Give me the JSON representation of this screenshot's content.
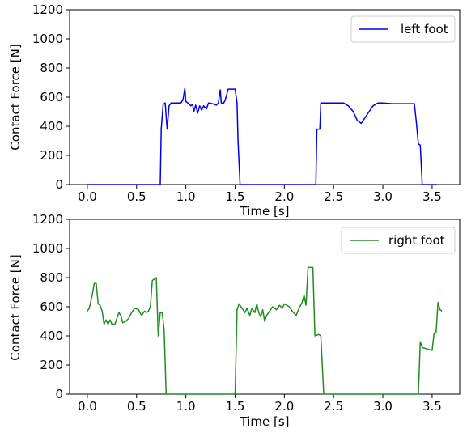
{
  "chart_data": [
    {
      "type": "line",
      "xlabel": "Time [s]",
      "ylabel": "Contact Force [N]",
      "xlim": [
        -0.18,
        3.78
      ],
      "ylim": [
        0,
        1200
      ],
      "xticks": [
        0.0,
        0.5,
        1.0,
        1.5,
        2.0,
        2.5,
        3.0,
        3.5
      ],
      "xtick_labels": [
        "0.0",
        "0.5",
        "1.0",
        "1.5",
        "2.0",
        "2.5",
        "3.0",
        "3.5"
      ],
      "yticks": [
        0,
        200,
        400,
        600,
        800,
        1000,
        1200
      ],
      "ytick_labels": [
        "0",
        "200",
        "400",
        "600",
        "800",
        "1000",
        "1200"
      ],
      "legend_position": "top-right",
      "series": [
        {
          "name": "left foot",
          "color": "#0000ee",
          "points": [
            [
              0.0,
              0
            ],
            [
              0.74,
              0
            ],
            [
              0.75,
              380
            ],
            [
              0.77,
              550
            ],
            [
              0.79,
              560
            ],
            [
              0.8,
              470
            ],
            [
              0.81,
              380
            ],
            [
              0.83,
              540
            ],
            [
              0.85,
              560
            ],
            [
              0.9,
              560
            ],
            [
              0.95,
              560
            ],
            [
              0.97,
              580
            ],
            [
              0.99,
              660
            ],
            [
              1.0,
              570
            ],
            [
              1.03,
              555
            ],
            [
              1.05,
              540
            ],
            [
              1.07,
              550
            ],
            [
              1.08,
              500
            ],
            [
              1.1,
              545
            ],
            [
              1.12,
              490
            ],
            [
              1.14,
              540
            ],
            [
              1.16,
              510
            ],
            [
              1.18,
              540
            ],
            [
              1.21,
              520
            ],
            [
              1.23,
              560
            ],
            [
              1.27,
              555
            ],
            [
              1.31,
              545
            ],
            [
              1.33,
              560
            ],
            [
              1.35,
              650
            ],
            [
              1.36,
              560
            ],
            [
              1.38,
              555
            ],
            [
              1.4,
              580
            ],
            [
              1.43,
              655
            ],
            [
              1.5,
              655
            ],
            [
              1.52,
              560
            ],
            [
              1.53,
              300
            ],
            [
              1.55,
              0
            ],
            [
              2.32,
              0
            ],
            [
              2.33,
              380
            ],
            [
              2.36,
              380
            ],
            [
              2.37,
              560
            ],
            [
              2.4,
              560
            ],
            [
              2.5,
              560
            ],
            [
              2.6,
              560
            ],
            [
              2.65,
              540
            ],
            [
              2.7,
              500
            ],
            [
              2.74,
              440
            ],
            [
              2.78,
              420
            ],
            [
              2.82,
              460
            ],
            [
              2.86,
              500
            ],
            [
              2.9,
              540
            ],
            [
              2.95,
              560
            ],
            [
              3.0,
              560
            ],
            [
              3.1,
              555
            ],
            [
              3.2,
              555
            ],
            [
              3.32,
              555
            ],
            [
              3.34,
              430
            ],
            [
              3.36,
              280
            ],
            [
              3.38,
              270
            ],
            [
              3.4,
              0
            ],
            [
              3.55,
              0
            ]
          ]
        }
      ]
    },
    {
      "type": "line",
      "xlabel": "Time [s]",
      "ylabel": "Contact Force [N]",
      "xlim": [
        -0.18,
        3.78
      ],
      "ylim": [
        0,
        1200
      ],
      "xticks": [
        0.0,
        0.5,
        1.0,
        1.5,
        2.0,
        2.5,
        3.0,
        3.5
      ],
      "xtick_labels": [
        "0.0",
        "0.5",
        "1.0",
        "1.5",
        "2.0",
        "2.5",
        "3.0",
        "3.5"
      ],
      "yticks": [
        0,
        200,
        400,
        600,
        800,
        1000,
        1200
      ],
      "ytick_labels": [
        "0",
        "200",
        "400",
        "600",
        "800",
        "1000",
        "1200"
      ],
      "legend_position": "top-right",
      "series": [
        {
          "name": "right foot",
          "color": "#228b22",
          "points": [
            [
              0.0,
              570
            ],
            [
              0.02,
              590
            ],
            [
              0.05,
              680
            ],
            [
              0.07,
              760
            ],
            [
              0.09,
              760
            ],
            [
              0.11,
              620
            ],
            [
              0.13,
              610
            ],
            [
              0.15,
              570
            ],
            [
              0.17,
              480
            ],
            [
              0.19,
              510
            ],
            [
              0.21,
              480
            ],
            [
              0.23,
              510
            ],
            [
              0.25,
              480
            ],
            [
              0.28,
              480
            ],
            [
              0.3,
              520
            ],
            [
              0.32,
              560
            ],
            [
              0.34,
              540
            ],
            [
              0.36,
              490
            ],
            [
              0.39,
              500
            ],
            [
              0.42,
              520
            ],
            [
              0.45,
              560
            ],
            [
              0.48,
              590
            ],
            [
              0.52,
              580
            ],
            [
              0.55,
              540
            ],
            [
              0.58,
              570
            ],
            [
              0.6,
              560
            ],
            [
              0.62,
              570
            ],
            [
              0.64,
              600
            ],
            [
              0.66,
              780
            ],
            [
              0.7,
              800
            ],
            [
              0.72,
              400
            ],
            [
              0.74,
              560
            ],
            [
              0.76,
              560
            ],
            [
              0.78,
              440
            ],
            [
              0.8,
              0
            ],
            [
              1.5,
              0
            ],
            [
              1.52,
              580
            ],
            [
              1.54,
              620
            ],
            [
              1.57,
              590
            ],
            [
              1.6,
              560
            ],
            [
              1.62,
              590
            ],
            [
              1.65,
              540
            ],
            [
              1.67,
              590
            ],
            [
              1.7,
              560
            ],
            [
              1.72,
              620
            ],
            [
              1.74,
              560
            ],
            [
              1.76,
              530
            ],
            [
              1.78,
              580
            ],
            [
              1.8,
              500
            ],
            [
              1.82,
              540
            ],
            [
              1.85,
              570
            ],
            [
              1.88,
              600
            ],
            [
              1.92,
              580
            ],
            [
              1.95,
              610
            ],
            [
              1.98,
              590
            ],
            [
              2.0,
              620
            ],
            [
              2.05,
              600
            ],
            [
              2.08,
              570
            ],
            [
              2.12,
              540
            ],
            [
              2.15,
              590
            ],
            [
              2.18,
              630
            ],
            [
              2.2,
              680
            ],
            [
              2.22,
              610
            ],
            [
              2.24,
              870
            ],
            [
              2.27,
              870
            ],
            [
              2.29,
              870
            ],
            [
              2.31,
              400
            ],
            [
              2.35,
              410
            ],
            [
              2.37,
              400
            ],
            [
              2.4,
              0
            ],
            [
              3.36,
              0
            ],
            [
              3.38,
              360
            ],
            [
              3.4,
              320
            ],
            [
              3.45,
              310
            ],
            [
              3.5,
              300
            ],
            [
              3.52,
              420
            ],
            [
              3.54,
              420
            ],
            [
              3.56,
              630
            ],
            [
              3.58,
              580
            ],
            [
              3.6,
              570
            ]
          ]
        }
      ]
    }
  ]
}
